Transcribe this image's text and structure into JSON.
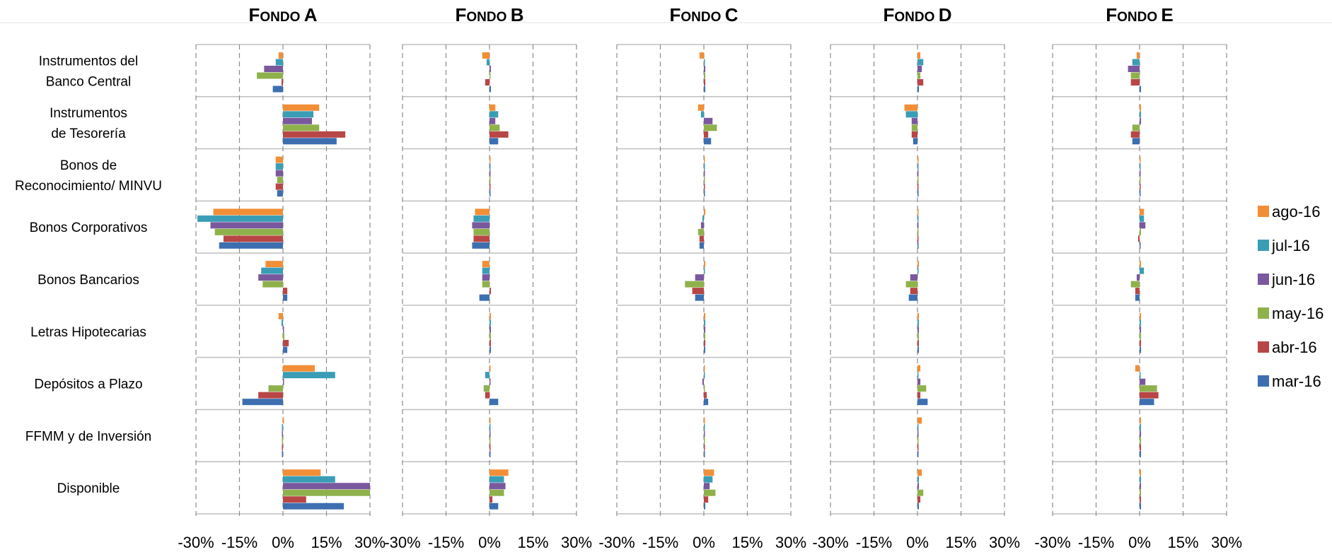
{
  "chart_data": {
    "type": "bar",
    "orientation": "horizontal",
    "grid": true,
    "legend_position": "right",
    "xlim": [
      -30,
      30
    ],
    "x_ticks": [
      "-30%",
      "-15%",
      "0%",
      "15%",
      "30%"
    ],
    "categories": [
      [
        "Instrumentos del",
        "Banco Central"
      ],
      [
        "Instrumentos",
        "de Tesorería"
      ],
      [
        "Bonos de",
        "Reconocimiento/ MINVU"
      ],
      [
        "Bonos Corporativos"
      ],
      [
        "Bonos Bancarios"
      ],
      [
        "Letras Hipotecarias"
      ],
      [
        "Depósitos a Plazo"
      ],
      [
        "FFMM y de Inversión"
      ],
      [
        "Disponible"
      ]
    ],
    "series_colors": {
      "ago-16": "#F28E36",
      "jul-16": "#3A9DB5",
      "jun-16": "#7A589E",
      "may-16": "#8FB14B",
      "abr-16": "#B84646",
      "mar-16": "#3D6FB0"
    },
    "legend": [
      "ago-16",
      "jul-16",
      "jun-16",
      "may-16",
      "abr-16",
      "mar-16"
    ],
    "panels": [
      {
        "title": "Fondo A",
        "title_display": {
          "F": "F",
          "rest": "ONDO",
          "letter": "A"
        },
        "series": [
          {
            "name": "ago-16",
            "values": [
              -1.5,
              12.5,
              -2.5,
              -24,
              -6,
              -1.5,
              11,
              0,
              13
            ]
          },
          {
            "name": "jul-16",
            "values": [
              -2.5,
              10.5,
              -2.5,
              -29.5,
              -7.5,
              -0.5,
              18,
              -0.3,
              18
            ]
          },
          {
            "name": "jun-16",
            "values": [
              -6.5,
              10,
              -2.5,
              -25,
              -8.5,
              0,
              0,
              -0.3,
              30.5
            ]
          },
          {
            "name": "may-16",
            "values": [
              -9,
              12.5,
              -2,
              -23.5,
              -7,
              0.5,
              -5,
              -0.3,
              30.5
            ]
          },
          {
            "name": "abr-16",
            "values": [
              -0.5,
              21.5,
              -2.5,
              -20.5,
              1.5,
              2,
              -8.5,
              -0.3,
              8
            ]
          },
          {
            "name": "mar-16",
            "values": [
              -3.5,
              18.5,
              -2,
              -22,
              1.5,
              1.5,
              -14,
              -0.3,
              21
            ]
          }
        ]
      },
      {
        "title": "Fondo B",
        "title_display": {
          "F": "F",
          "rest": "ONDO",
          "letter": "B"
        },
        "series": [
          {
            "name": "ago-16",
            "values": [
              -2.5,
              2,
              0,
              -5,
              -2.5,
              0.5,
              0,
              0,
              6.5
            ]
          },
          {
            "name": "jul-16",
            "values": [
              -1,
              3,
              0,
              -5.5,
              -2.5,
              0.5,
              -1.5,
              0,
              5
            ]
          },
          {
            "name": "jun-16",
            "values": [
              0.5,
              2,
              0,
              -6,
              -2.5,
              0.5,
              0,
              0,
              5.5
            ]
          },
          {
            "name": "may-16",
            "values": [
              0,
              3.5,
              0,
              -5.5,
              -2.5,
              0.5,
              -2,
              0,
              5
            ]
          },
          {
            "name": "abr-16",
            "values": [
              -1.5,
              6.5,
              0,
              -5.5,
              0.5,
              0.5,
              -1.5,
              0,
              1
            ]
          },
          {
            "name": "mar-16",
            "values": [
              0.5,
              3,
              0,
              -6,
              -3.5,
              0.5,
              3,
              0,
              3
            ]
          }
        ]
      },
      {
        "title": "Fondo C",
        "title_display": {
          "F": "F",
          "rest": "ONDO",
          "letter": "C"
        },
        "series": [
          {
            "name": "ago-16",
            "values": [
              -1.5,
              -2,
              0,
              0.5,
              0.5,
              0.5,
              0,
              0.3,
              3.5
            ]
          },
          {
            "name": "jul-16",
            "values": [
              0,
              -1,
              0,
              -0.5,
              0,
              0.5,
              0,
              0.3,
              3
            ]
          },
          {
            "name": "jun-16",
            "values": [
              0.5,
              3,
              0,
              -1,
              -3,
              0.5,
              -0.5,
              0.3,
              2
            ]
          },
          {
            "name": "may-16",
            "values": [
              0.5,
              4.5,
              0,
              -2,
              -6.5,
              0.5,
              0,
              0.3,
              4
            ]
          },
          {
            "name": "abr-16",
            "values": [
              0.5,
              1.5,
              0,
              -1.5,
              -4,
              0.5,
              1,
              0.3,
              1.5
            ]
          },
          {
            "name": "mar-16",
            "values": [
              0.5,
              2.5,
              0,
              -1.5,
              -3,
              0.5,
              1.5,
              0.3,
              0.5
            ]
          }
        ]
      },
      {
        "title": "Fondo D",
        "title_display": {
          "F": "F",
          "rest": "ONDO",
          "letter": "D"
        },
        "series": [
          {
            "name": "ago-16",
            "values": [
              1,
              -4.5,
              0,
              0,
              0.5,
              0.5,
              1,
              1.5,
              1.5
            ]
          },
          {
            "name": "jul-16",
            "values": [
              2,
              -4,
              0,
              0,
              0,
              0.5,
              0,
              0.3,
              0.5
            ]
          },
          {
            "name": "jun-16",
            "values": [
              1.5,
              -2,
              0,
              0,
              -2.5,
              0.5,
              1,
              0.3,
              0.5
            ]
          },
          {
            "name": "may-16",
            "values": [
              1,
              -2,
              0,
              0,
              -4,
              0.5,
              3,
              0.3,
              2
            ]
          },
          {
            "name": "abr-16",
            "values": [
              2,
              -2,
              0,
              0,
              -2.5,
              0.5,
              1,
              0.3,
              1
            ]
          },
          {
            "name": "mar-16",
            "values": [
              0.5,
              -1.5,
              0,
              0,
              -3,
              0.5,
              3.5,
              0.3,
              0.5
            ]
          }
        ]
      },
      {
        "title": "Fondo E",
        "title_display": {
          "F": "F",
          "rest": "ONDO",
          "letter": "E"
        },
        "series": [
          {
            "name": "ago-16",
            "values": [
              -1,
              0.5,
              0,
              1.5,
              0.5,
              0.5,
              -1.5,
              0.5,
              0.5
            ]
          },
          {
            "name": "jul-16",
            "values": [
              -2.5,
              0.5,
              0,
              1.5,
              1.5,
              0.5,
              0,
              0.5,
              0.5
            ]
          },
          {
            "name": "jun-16",
            "values": [
              -4,
              0.5,
              0,
              2,
              -1,
              0.5,
              2,
              0.5,
              0.5
            ]
          },
          {
            "name": "may-16",
            "values": [
              -3,
              -2.5,
              0,
              0.5,
              -3,
              0.5,
              6,
              0.5,
              0.5
            ]
          },
          {
            "name": "abr-16",
            "values": [
              -3,
              -3,
              0,
              -0.5,
              -1.5,
              0.5,
              6.5,
              0.5,
              0.5
            ]
          },
          {
            "name": "mar-16",
            "values": [
              0.5,
              -2.5,
              0,
              0,
              -1.5,
              0.5,
              5,
              0.5,
              0.5
            ]
          }
        ]
      }
    ]
  }
}
